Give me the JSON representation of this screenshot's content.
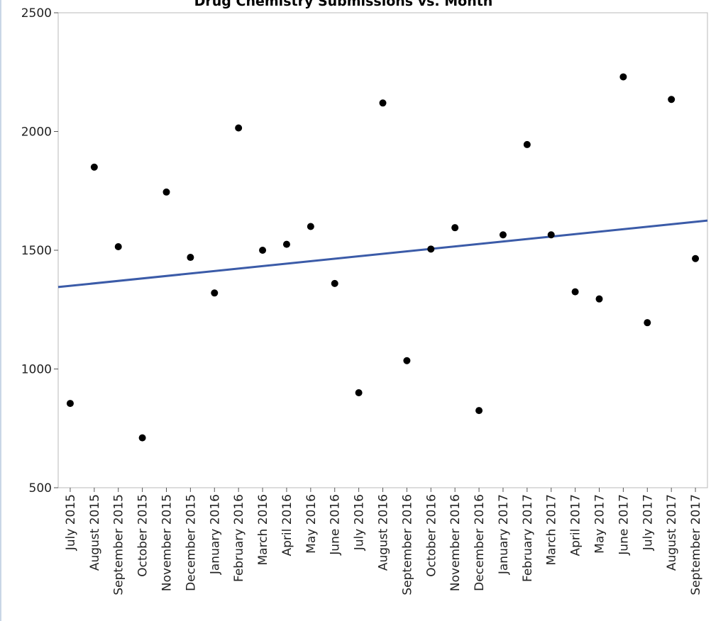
{
  "chart_data": {
    "type": "scatter",
    "title": "Drug Chemistry Submissions vs. Month",
    "xlabel": "",
    "ylabel": "",
    "ylim": [
      500,
      2500
    ],
    "yticks": [
      "500",
      "1000",
      "1500",
      "2000",
      "2500"
    ],
    "categories": [
      "July 2015",
      "August 2015",
      "September 2015",
      "October 2015",
      "November 2015",
      "December 2015",
      "January 2016",
      "February 2016",
      "March 2016",
      "April 2016",
      "May 2016",
      "June 2016",
      "July 2016",
      "August 2016",
      "September 2016",
      "October 2016",
      "November 2016",
      "December 2016",
      "January 2017",
      "February 2017",
      "March 2017",
      "April 2017",
      "May 2017",
      "June 2017",
      "July 2017",
      "August 2017",
      "September 2017"
    ],
    "values": [
      855,
      1850,
      1515,
      710,
      1745,
      1470,
      1320,
      2015,
      1500,
      1525,
      1600,
      1360,
      900,
      2120,
      1035,
      1505,
      1595,
      825,
      1565,
      1945,
      1565,
      1325,
      1295,
      2230,
      1195,
      2135,
      1465
    ],
    "trendline": {
      "type": "linear",
      "color": "#3b5ba8",
      "start": 1345,
      "end": 1625
    },
    "grid": false,
    "legend": "none",
    "colors": {
      "point": "#000000",
      "frame": "#b8b8b8"
    }
  }
}
